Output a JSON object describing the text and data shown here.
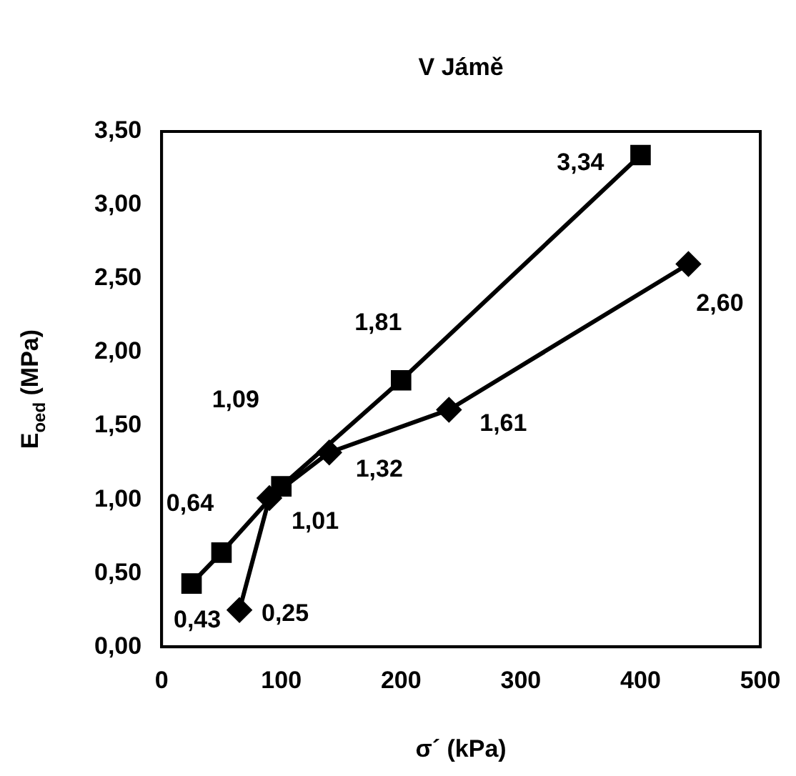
{
  "chart_data": {
    "type": "line",
    "title": "V Jámě",
    "xlabel": "σ´ (kPa)",
    "ylabel": "E$_{oed}$ (MPa)",
    "xlim": [
      0,
      500
    ],
    "xticks": [
      0,
      100,
      200,
      300,
      400,
      500
    ],
    "ylim": [
      0,
      3.5
    ],
    "yticks": [
      {
        "value": 0,
        "label": "0,00"
      },
      {
        "value": 0.5,
        "label": "0,50"
      },
      {
        "value": 1,
        "label": "1,00"
      },
      {
        "value": 1.5,
        "label": "1,50"
      },
      {
        "value": 2,
        "label": "2,00"
      },
      {
        "value": 2.5,
        "label": "2,50"
      },
      {
        "value": 3,
        "label": "3,00"
      },
      {
        "value": 3.5,
        "label": "3,50"
      }
    ],
    "grid": false,
    "legend": false,
    "data_labels": true,
    "line_style": "solid",
    "series": [
      {
        "color": "#000000",
        "marker": "square",
        "x": [
          25,
          50,
          100,
          200,
          400
        ],
        "values": [
          0.43,
          0.64,
          1.09,
          1.81,
          3.34
        ],
        "value_labels": [
          "0,43",
          "0,64",
          "1,09",
          "1,81",
          "3,34"
        ]
      },
      {
        "color": "#000000",
        "marker": "diamond",
        "x": [
          65,
          90,
          140,
          240,
          440
        ],
        "values": [
          0.25,
          1.01,
          1.32,
          1.61,
          2.6
        ],
        "value_labels": [
          "0,25",
          "1,01",
          "1,32",
          "1,61",
          "2,60"
        ]
      }
    ]
  }
}
